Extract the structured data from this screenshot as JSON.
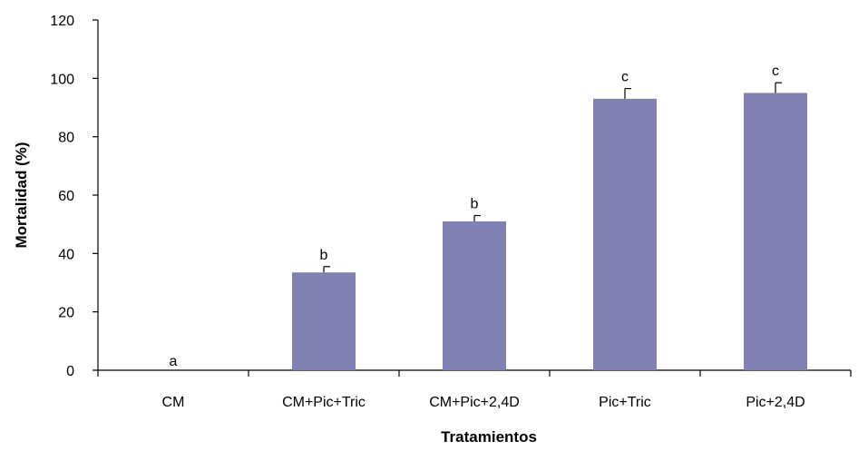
{
  "chart_data": {
    "type": "bar",
    "title": "",
    "xlabel": "Tratamientos",
    "ylabel": "Mortalidad (%)",
    "ylim": [
      0,
      120
    ],
    "yticks": [
      "0",
      "20",
      "40",
      "60",
      "80",
      "100",
      "120"
    ],
    "categories": [
      "CM",
      "CM+Pic+Tric",
      "CM+Pic+2,4D",
      "Pic+Tric",
      "Pic+2,4D"
    ],
    "values": [
      0,
      33.5,
      51,
      93,
      95
    ],
    "errors": [
      0,
      2,
      2,
      3.5,
      3.5
    ],
    "significance_letters": [
      "a",
      "b",
      "b",
      "c",
      "c"
    ],
    "bar_color": "#8080b2",
    "axis_color": "#000000",
    "grid": false,
    "legend": "none"
  }
}
